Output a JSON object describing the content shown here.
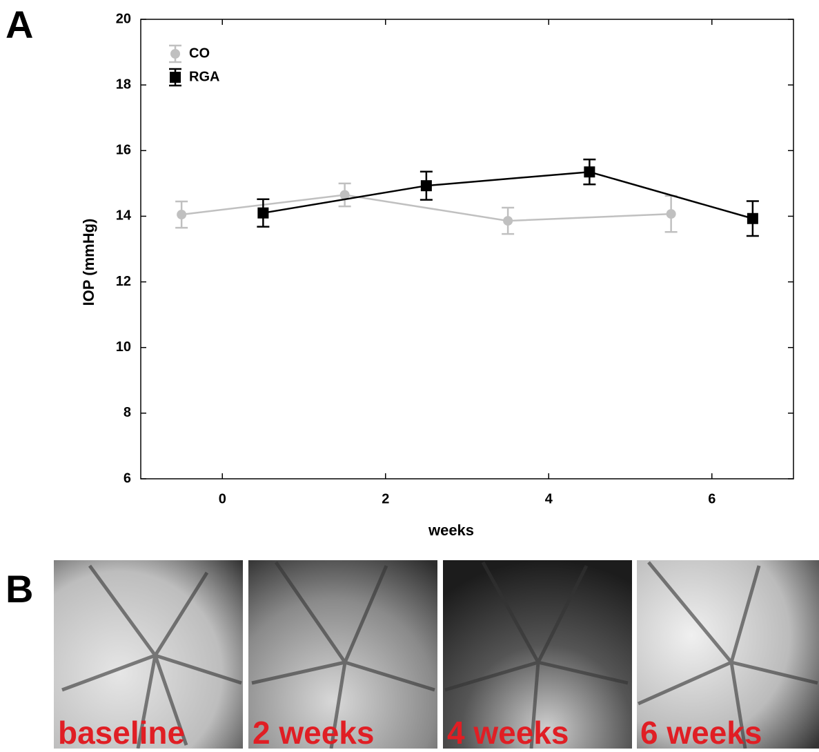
{
  "panel_labels": [
    "A",
    "B"
  ],
  "chart_data": {
    "type": "line",
    "y_label": "IOP (mmHg)",
    "x_label": "weeks",
    "xlim": [
      -1,
      7
    ],
    "xticks": [
      0,
      2,
      4,
      6
    ],
    "ylim": [
      6,
      20
    ],
    "yticks": [
      6,
      8,
      10,
      12,
      14,
      16,
      18,
      20
    ],
    "legend": "upper left",
    "series": [
      {
        "name": "CO",
        "color": "#c0c0c0",
        "marker": "circle",
        "x": [
          -0.5,
          1.5,
          3.5,
          5.5
        ],
        "values": [
          14.05,
          14.65,
          13.86,
          14.07
        ],
        "errors": [
          0.4,
          0.35,
          0.4,
          0.55
        ]
      },
      {
        "name": "RGA",
        "color": "#000000",
        "marker": "square",
        "x": [
          0.5,
          2.5,
          4.5,
          6.5
        ],
        "values": [
          14.1,
          14.93,
          15.35,
          13.93
        ],
        "errors": [
          0.42,
          0.43,
          0.38,
          0.53
        ]
      }
    ]
  },
  "images": [
    {
      "caption": "baseline"
    },
    {
      "caption": "2 weeks"
    },
    {
      "caption": "4 weeks"
    },
    {
      "caption": "6 weeks"
    }
  ]
}
